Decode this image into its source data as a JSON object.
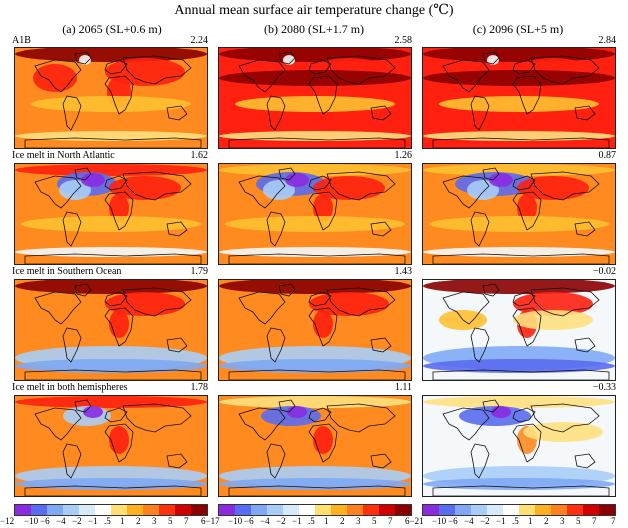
{
  "title": "Annual mean surface air temperature change (℃)",
  "columns": [
    {
      "label": "(a) 2065 (SL+0.6 m)"
    },
    {
      "label": "(b) 2080 (SL+1.7 m)"
    },
    {
      "label": "(c) 2096 (SL+5 m)"
    }
  ],
  "rows": [
    {
      "label": "A1B",
      "values": [
        "2.24",
        "2.58",
        "2.84"
      ]
    },
    {
      "label": "Ice melt in North Atlantic",
      "values": [
        "1.62",
        "1.26",
        "0.87"
      ]
    },
    {
      "label": "Ice melt in Southern Ocean",
      "values": [
        "1.79",
        "1.43",
        "−0.02"
      ]
    },
    {
      "label": "Ice melt in both hemispheres",
      "values": [
        "1.78",
        "1.11",
        "−0.33"
      ]
    }
  ],
  "colorbar": {
    "ticks": [
      "−10",
      "−6",
      "−4",
      "−2",
      "−1",
      ".5",
      "1",
      "2",
      "3",
      "5",
      "7"
    ],
    "ends": [
      "−12",
      "6−17",
      "6−21",
      "7"
    ],
    "colors": [
      "#8a2be2",
      "#5a6cf0",
      "#7fa8f5",
      "#a9cdf7",
      "#d6ebf7",
      "#ffffff",
      "#ffe070",
      "#ffb020",
      "#ff8020",
      "#ff3010",
      "#d00000",
      "#8b0000"
    ]
  }
}
